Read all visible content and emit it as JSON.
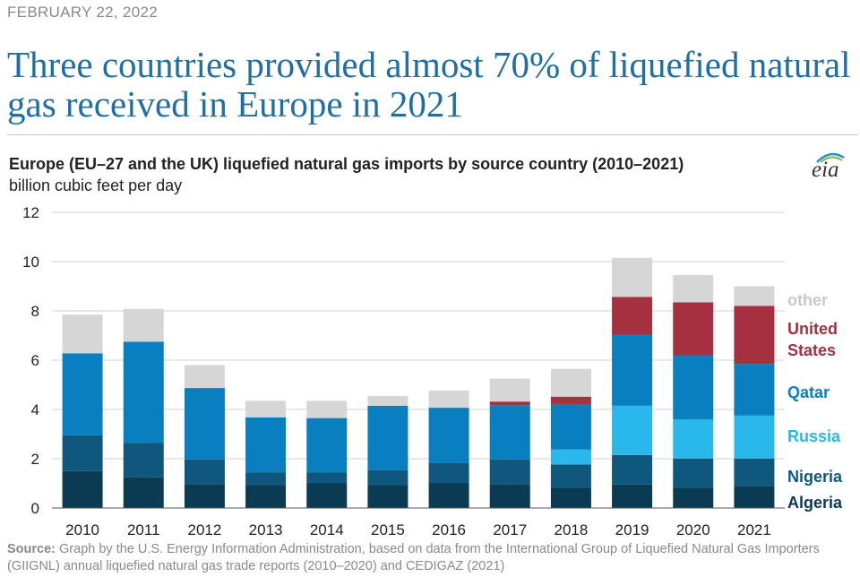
{
  "header": {
    "date": "FEBRUARY 22, 2022",
    "headline": "Three countries provided almost 70% of liquefied natural gas received in Europe in 2021"
  },
  "logo": {
    "text": "eia"
  },
  "source": {
    "label": "Source:",
    "text": "Graph by the U.S. Energy Information Administration, based on data from the International Group of Liquefied Natural Gas Importers (GIIGNL) annual liquefied natural gas trade reports (2010–2020) and CEDIGAZ (2021)"
  },
  "chart_data": {
    "type": "bar",
    "stacked": true,
    "title": "Europe (EU–27 and the UK) liquefied natural gas imports by source country (2010–2021)",
    "ylabel": "billion cubic feet per day",
    "xlabel": "",
    "ylim": [
      0,
      12
    ],
    "yticks": [
      0,
      2,
      4,
      6,
      8,
      10,
      12
    ],
    "grid": true,
    "legend_placement": "right, inline labels",
    "categories": [
      "2010",
      "2011",
      "2012",
      "2013",
      "2014",
      "2015",
      "2016",
      "2017",
      "2018",
      "2019",
      "2020",
      "2021"
    ],
    "series": [
      {
        "name": "Algeria",
        "color": "#0b3a53",
        "values": [
          1.5,
          1.25,
          0.97,
          0.93,
          1.0,
          0.93,
          1.0,
          0.97,
          0.8,
          0.95,
          0.8,
          0.9
        ]
      },
      {
        "name": "Nigeria",
        "color": "#10577e",
        "values": [
          1.45,
          1.4,
          1.0,
          0.52,
          0.45,
          0.6,
          0.82,
          1.0,
          0.97,
          1.2,
          1.2,
          1.1
        ]
      },
      {
        "name": "Russia",
        "color": "#2ab8ec",
        "values": [
          0,
          0,
          0,
          0,
          0,
          0,
          0,
          0,
          0.6,
          2.0,
          1.6,
          1.75
        ]
      },
      {
        "name": "Qatar",
        "color": "#0a7fc0",
        "values": [
          3.33,
          4.1,
          2.9,
          2.23,
          2.2,
          2.62,
          2.25,
          2.2,
          1.85,
          2.87,
          2.6,
          2.1
        ]
      },
      {
        "name": "United States",
        "color": "#a5303f",
        "values": [
          0,
          0,
          0,
          0,
          0,
          0,
          0,
          0.15,
          0.3,
          1.55,
          2.15,
          2.35
        ]
      },
      {
        "name": "other",
        "color": "#d6d6d6",
        "values": [
          1.57,
          1.33,
          0.93,
          0.67,
          0.7,
          0.4,
          0.7,
          0.93,
          1.13,
          1.58,
          1.1,
          0.8
        ]
      }
    ],
    "legend_labels": [
      {
        "key": "other",
        "text": "other",
        "color": "#c8c8c8"
      },
      {
        "key": "us1",
        "text": "United",
        "color": "#a5303f"
      },
      {
        "key": "us2",
        "text": "States",
        "color": "#a5303f"
      },
      {
        "key": "qatar",
        "text": "Qatar",
        "color": "#0a7fc0"
      },
      {
        "key": "russia",
        "text": "Russia",
        "color": "#2ab8ec"
      },
      {
        "key": "nigeria",
        "text": "Nigeria",
        "color": "#10577e"
      },
      {
        "key": "algeria",
        "text": "Algeria",
        "color": "#0b3a53"
      }
    ]
  }
}
